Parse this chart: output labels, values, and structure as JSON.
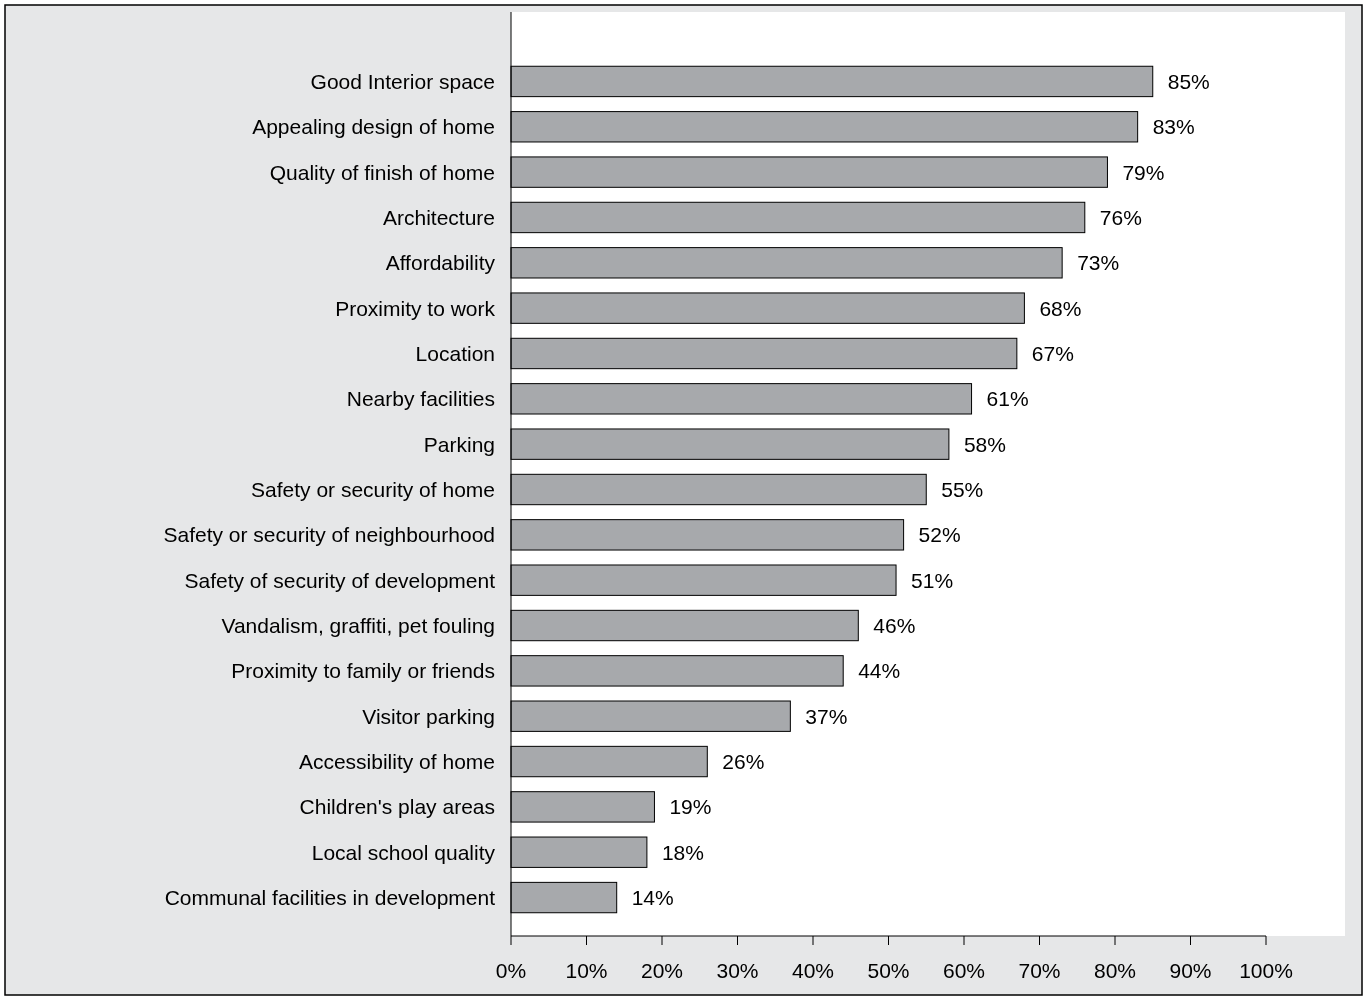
{
  "chart_data": {
    "type": "bar",
    "orientation": "horizontal",
    "categories": [
      "Good Interior space",
      "Appealing design of home",
      "Quality of finish of home",
      "Architecture",
      "Affordability",
      "Proximity to work",
      "Location",
      "Nearby facilities",
      "Parking",
      "Safety or security of home",
      "Safety or security of neighbourhood",
      "Safety of security of development",
      "Vandalism, graffiti, pet fouling",
      "Proximity to family or friends",
      "Visitor parking",
      "Accessibility of home",
      "Children's play areas",
      "Local school quality",
      "Communal facilities in development"
    ],
    "values": [
      85,
      83,
      79,
      76,
      73,
      68,
      67,
      61,
      58,
      55,
      52,
      51,
      46,
      44,
      37,
      26,
      19,
      18,
      14
    ],
    "value_labels": [
      "85%",
      "83%",
      "79%",
      "76%",
      "73%",
      "68%",
      "67%",
      "61%",
      "58%",
      "55%",
      "52%",
      "51%",
      "46%",
      "44%",
      "37%",
      "26%",
      "19%",
      "18%",
      "14%"
    ],
    "color": "#a7a9ac",
    "xlim": [
      0,
      100
    ],
    "xticks": [
      {
        "value": 0,
        "label": "0%"
      },
      {
        "value": 10,
        "label": "10%"
      },
      {
        "value": 20,
        "label": "20%"
      },
      {
        "value": 30,
        "label": "30%"
      },
      {
        "value": 40,
        "label": "40%"
      },
      {
        "value": 50,
        "label": "50%"
      },
      {
        "value": 60,
        "label": "60%"
      },
      {
        "value": 70,
        "label": "70%"
      },
      {
        "value": 80,
        "label": "80%"
      },
      {
        "value": 90,
        "label": "90%"
      },
      {
        "value": 100,
        "label": "100%"
      }
    ],
    "grid": false
  }
}
